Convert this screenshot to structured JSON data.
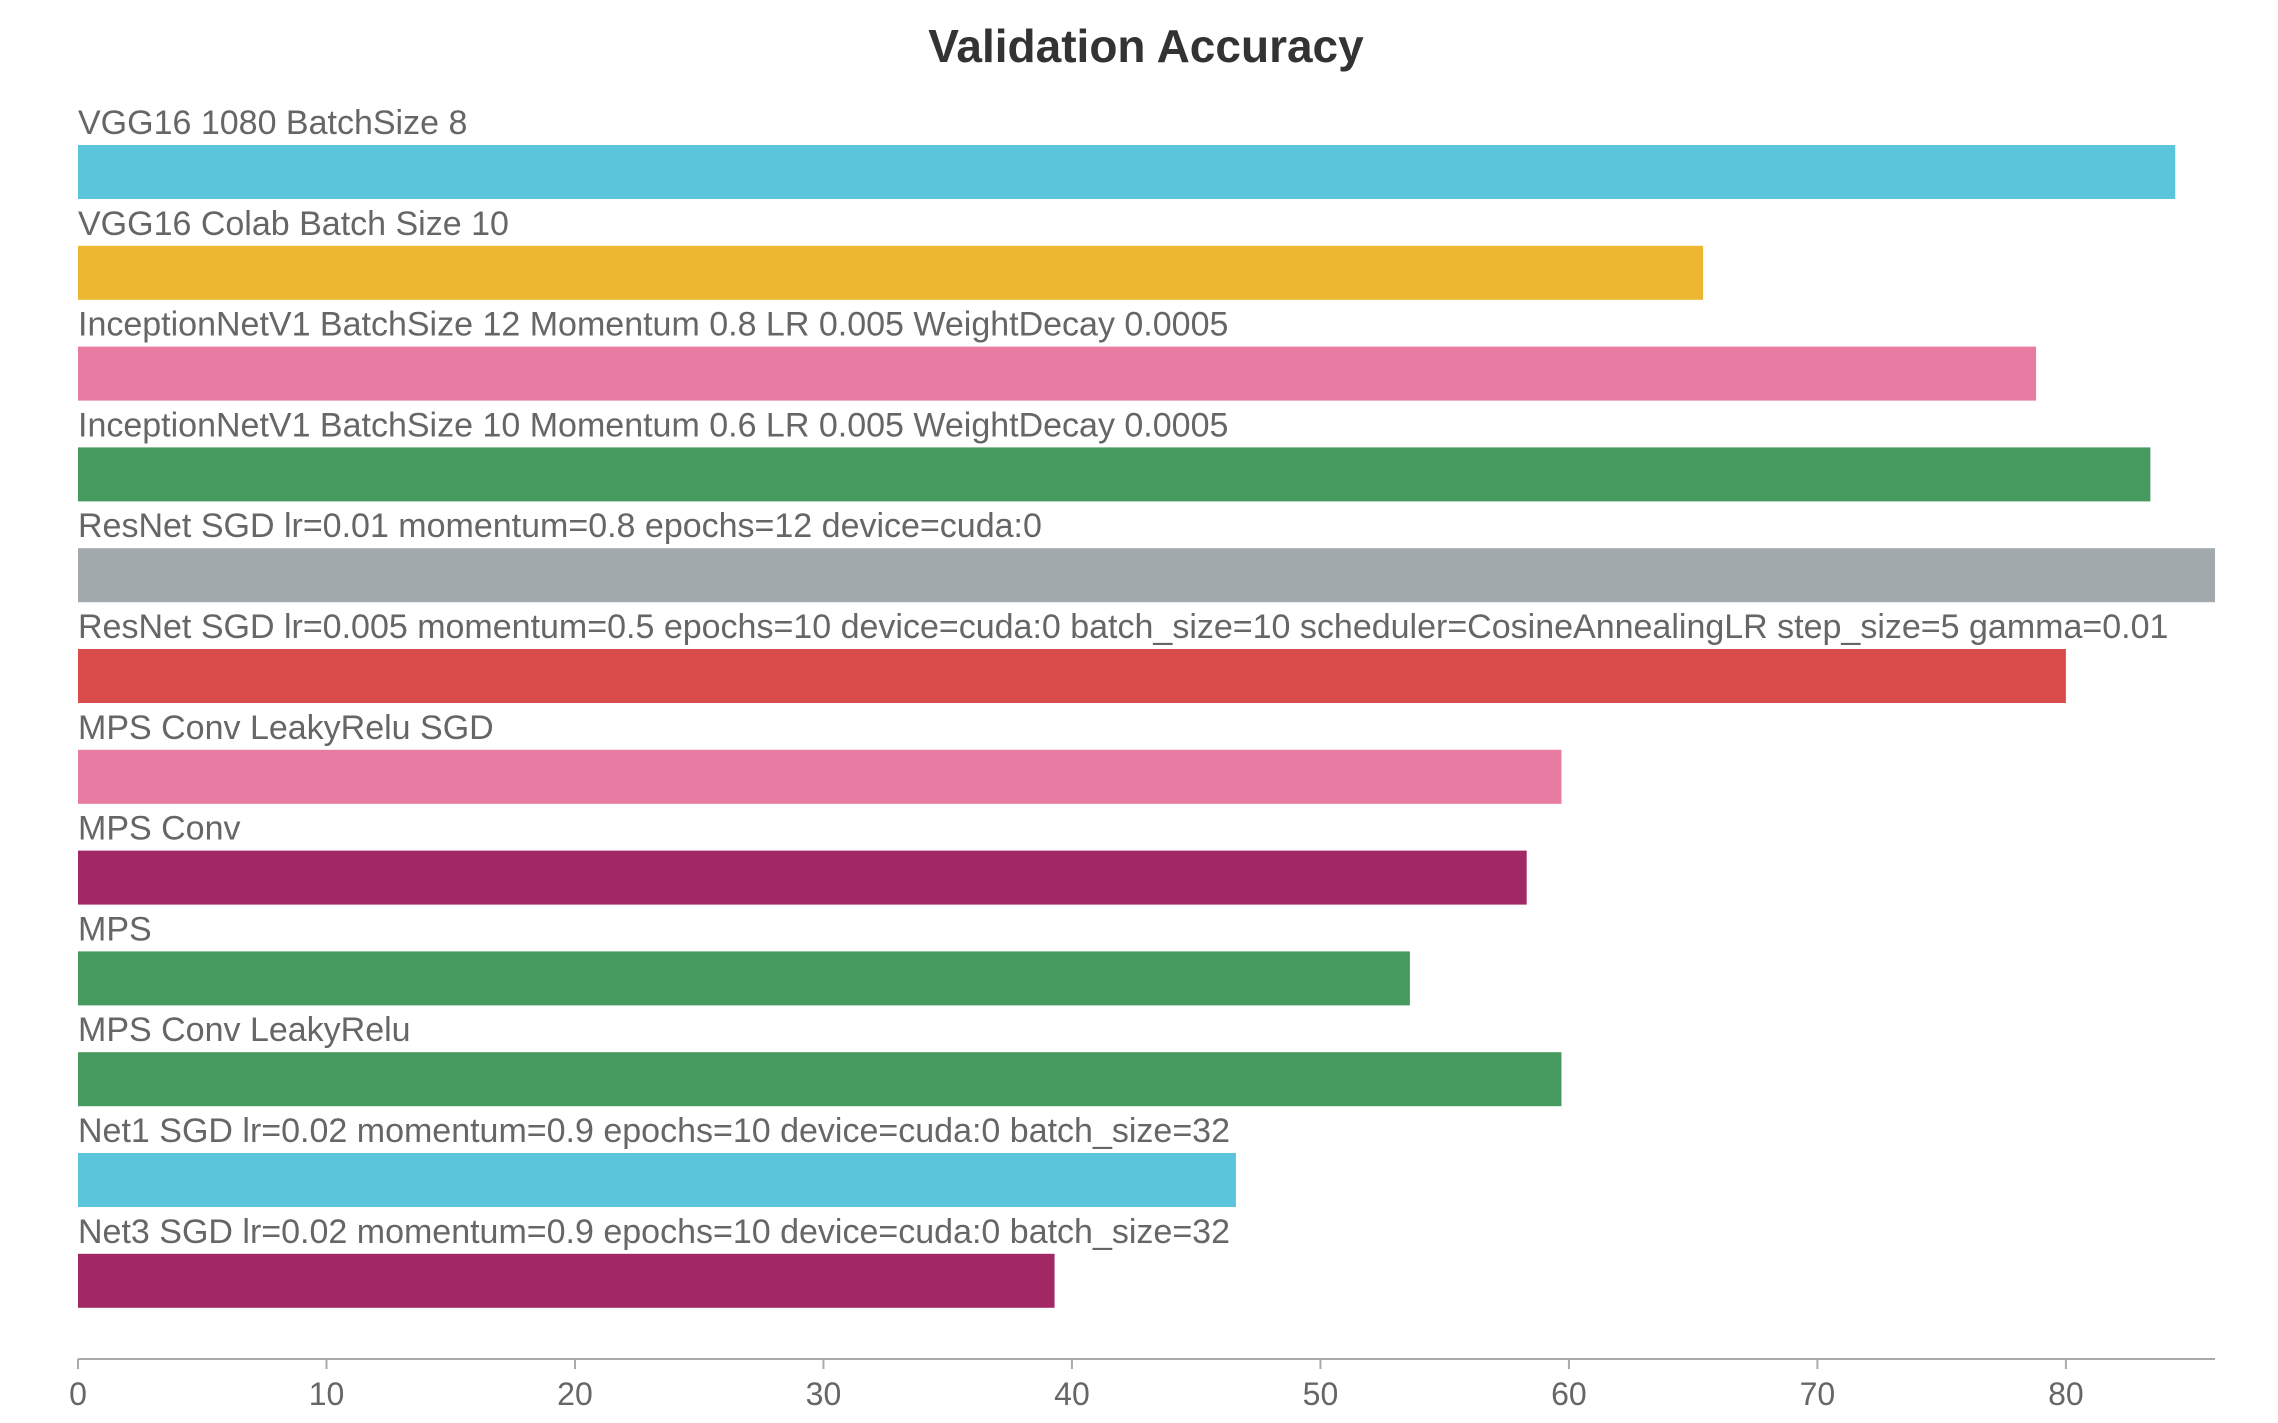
{
  "chart_data": {
    "type": "bar",
    "orientation": "horizontal",
    "title": "Validation Accuracy",
    "xlabel": "",
    "ylabel": "",
    "xlim": [
      0,
      86
    ],
    "x_ticks": [
      0,
      10,
      20,
      30,
      40,
      50,
      60,
      70,
      80
    ],
    "grid": false,
    "legend": "none",
    "series": [
      {
        "name": "VGG16 1080 BatchSize 8",
        "value": 84.4,
        "color": "#5bc5db"
      },
      {
        "name": "VGG16 Colab Batch Size 10",
        "value": 65.4,
        "color": "#edb732"
      },
      {
        "name": "InceptionNetV1 BatchSize 12 Momentum 0.8 LR 0.005 WeightDecay 0.0005",
        "value": 78.8,
        "color": "#e87ba1"
      },
      {
        "name": "InceptionNetV1 BatchSize 10 Momentum 0.6 LR 0.005 WeightDecay 0.0005",
        "value": 83.4,
        "color": "#479a5f"
      },
      {
        "name": "ResNet SGD lr=0.01 momentum=0.8 epochs=12 device=cuda:0",
        "value": 86.0,
        "color": "#a1a9ad"
      },
      {
        "name": "ResNet SGD lr=0.005 momentum=0.5 epochs=10 device=cuda:0 batch_size=10 scheduler=CosineAnnealingLR step_size=5 gamma=0.01",
        "value": 80.0,
        "color": "#da4c4c"
      },
      {
        "name": "MPS Conv LeakyRelu SGD",
        "value": 59.7,
        "color": "#e87ba1"
      },
      {
        "name": "MPS Conv",
        "value": 58.3,
        "color": "#a12864"
      },
      {
        "name": "MPS",
        "value": 53.6,
        "color": "#479a5f"
      },
      {
        "name": "MPS Conv LeakyRelu",
        "value": 59.7,
        "color": "#479a5f"
      },
      {
        "name": "Net1 SGD lr=0.02 momentum=0.9 epochs=10 device=cuda:0 batch_size=32",
        "value": 46.6,
        "color": "#5bc5db"
      },
      {
        "name": "Net3 SGD lr=0.02 momentum=0.9 epochs=10 device=cuda:0 batch_size=32",
        "value": 39.3,
        "color": "#a12864"
      }
    ]
  }
}
